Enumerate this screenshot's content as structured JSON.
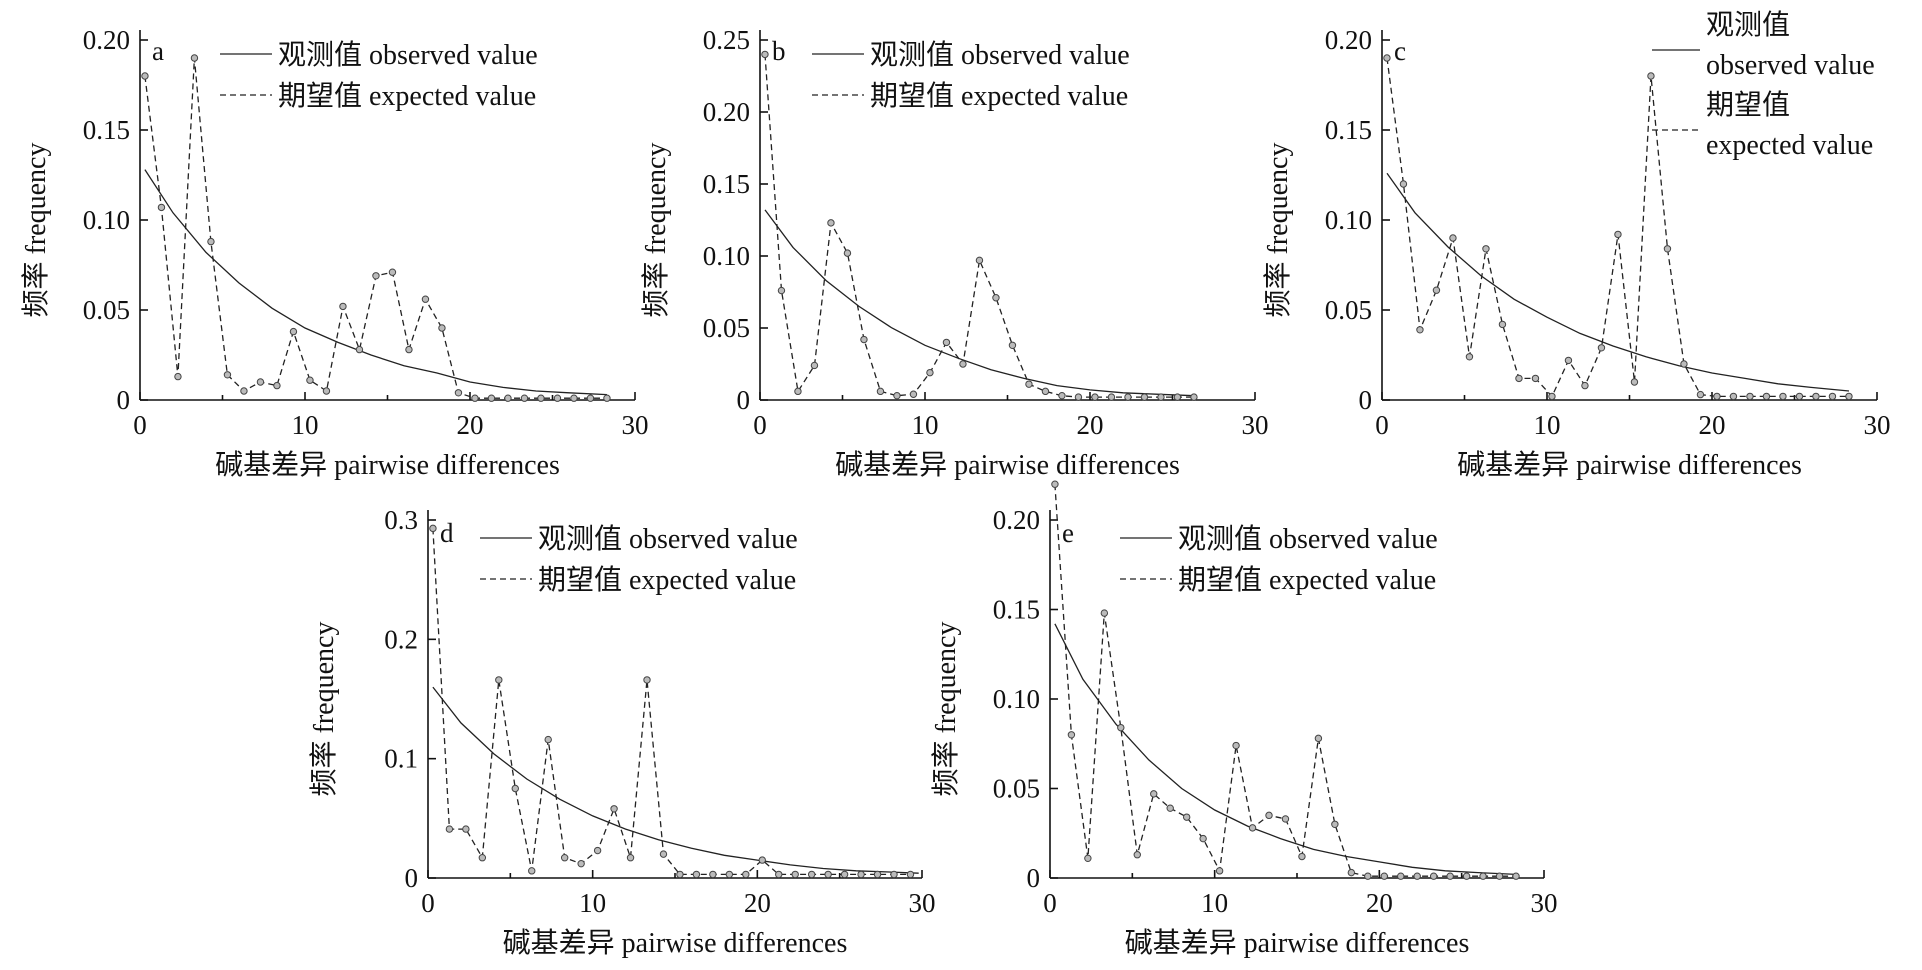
{
  "chart_data": [
    {
      "type": "line",
      "panel_label": "a",
      "xlabel": "碱基差异 pairwise differences",
      "ylabel": "频率 frequency",
      "xlim": [
        0,
        30
      ],
      "ylim": [
        0,
        0.2
      ],
      "xticks": [
        0,
        10,
        20,
        30
      ],
      "xtick_labels": [
        "0",
        "10",
        "20",
        "30"
      ],
      "yticks": [
        0,
        0.05,
        0.1,
        0.15,
        0.2
      ],
      "ytick_labels": [
        "0",
        "0.05",
        "0.10",
        "0.15",
        "0.20"
      ],
      "legend": {
        "placement": "top-right",
        "entries": [
          "观测值 observed value",
          "期望值 expected value"
        ]
      },
      "series": [
        {
          "name": "观测值 observed value",
          "style": "solid",
          "x": [
            0.3,
            2,
            4,
            6,
            8,
            10,
            12,
            14,
            16,
            18,
            20,
            22,
            24,
            26,
            28.3
          ],
          "values": [
            0.128,
            0.104,
            0.082,
            0.065,
            0.051,
            0.04,
            0.032,
            0.025,
            0.019,
            0.015,
            0.01,
            0.007,
            0.005,
            0.004,
            0.003
          ]
        },
        {
          "name": "期望值 expected value",
          "style": "dashed",
          "x": [
            0.3,
            1.3,
            2.3,
            3.3,
            4.3,
            5.3,
            6.3,
            7.3,
            8.3,
            9.3,
            10.3,
            11.3,
            12.3,
            13.3,
            14.3,
            15.3,
            16.3,
            17.3,
            18.3,
            19.3,
            20.3,
            21.3,
            22.3,
            23.3,
            24.3,
            25.3,
            26.3,
            27.3,
            28.3
          ],
          "values": [
            0.18,
            0.107,
            0.013,
            0.19,
            0.088,
            0.014,
            0.005,
            0.01,
            0.008,
            0.038,
            0.011,
            0.005,
            0.052,
            0.028,
            0.069,
            0.071,
            0.028,
            0.056,
            0.04,
            0.004,
            0.001,
            0.001,
            0.001,
            0.001,
            0.001,
            0.001,
            0.001,
            0.001,
            0.001
          ]
        }
      ]
    },
    {
      "type": "line",
      "panel_label": "b",
      "xlabel": "碱基差异 pairwise differences",
      "ylabel": "频率 frequency",
      "xlim": [
        0,
        30
      ],
      "ylim": [
        0,
        0.25
      ],
      "xticks": [
        0,
        10,
        20,
        30
      ],
      "xtick_labels": [
        "0",
        "10",
        "20",
        "30"
      ],
      "yticks": [
        0,
        0.05,
        0.1,
        0.15,
        0.2,
        0.25
      ],
      "ytick_labels": [
        "0",
        "0.05",
        "0.10",
        "0.15",
        "0.20",
        "0.25"
      ],
      "legend": {
        "placement": "top-right",
        "entries": [
          "观测值 observed value",
          "期望值 expected value"
        ]
      },
      "series": [
        {
          "name": "观测值 observed value",
          "style": "solid",
          "x": [
            0.3,
            2,
            4,
            6,
            8,
            10,
            12,
            14,
            16,
            18,
            20,
            22,
            24,
            26.3
          ],
          "values": [
            0.132,
            0.106,
            0.083,
            0.065,
            0.05,
            0.038,
            0.029,
            0.021,
            0.015,
            0.01,
            0.007,
            0.005,
            0.004,
            0.003
          ]
        },
        {
          "name": "期望值 expected value",
          "style": "dashed",
          "x": [
            0.3,
            1.3,
            2.3,
            3.3,
            4.3,
            5.3,
            6.3,
            7.3,
            8.3,
            9.3,
            10.3,
            11.3,
            12.3,
            13.3,
            14.3,
            15.3,
            16.3,
            17.3,
            18.3,
            19.3,
            20.3,
            21.3,
            22.3,
            23.3,
            24.3,
            25.3,
            26.3
          ],
          "values": [
            0.24,
            0.076,
            0.006,
            0.024,
            0.123,
            0.102,
            0.042,
            0.006,
            0.003,
            0.004,
            0.019,
            0.04,
            0.025,
            0.097,
            0.071,
            0.038,
            0.011,
            0.006,
            0.003,
            0.002,
            0.002,
            0.002,
            0.002,
            0.002,
            0.002,
            0.002,
            0.002
          ]
        }
      ]
    },
    {
      "type": "line",
      "panel_label": "c",
      "xlabel": "碱基差异 pairwise differences",
      "ylabel": "频率 frequency",
      "xlim": [
        0,
        30
      ],
      "ylim": [
        0,
        0.2
      ],
      "xticks": [
        0,
        10,
        20,
        30
      ],
      "xtick_labels": [
        "0",
        "10",
        "20",
        "30"
      ],
      "yticks": [
        0,
        0.05,
        0.1,
        0.15,
        0.2
      ],
      "ytick_labels": [
        "0",
        "0.05",
        "0.10",
        "0.15",
        "0.20"
      ],
      "legend": {
        "placement": "top-right",
        "entries": [
          "观测值 observed value",
          "期望值 expected value"
        ]
      },
      "series": [
        {
          "name": "观测值 observed value",
          "style": "solid",
          "x": [
            0.3,
            2,
            4,
            6,
            8,
            10,
            12,
            14,
            16,
            18,
            20,
            22,
            24,
            26,
            28.3
          ],
          "values": [
            0.126,
            0.104,
            0.085,
            0.069,
            0.056,
            0.046,
            0.037,
            0.03,
            0.024,
            0.019,
            0.015,
            0.012,
            0.009,
            0.007,
            0.005
          ]
        },
        {
          "name": "期望值 expected value",
          "style": "dashed",
          "x": [
            0.3,
            1.3,
            2.3,
            3.3,
            4.3,
            5.3,
            6.3,
            7.3,
            8.3,
            9.3,
            10.3,
            11.3,
            12.3,
            13.3,
            14.3,
            15.3,
            16.3,
            17.3,
            18.3,
            19.3,
            20.3,
            21.3,
            22.3,
            23.3,
            24.3,
            25.3,
            26.3,
            27.3,
            28.3
          ],
          "values": [
            0.19,
            0.12,
            0.039,
            0.061,
            0.09,
            0.024,
            0.084,
            0.042,
            0.012,
            0.012,
            0.002,
            0.022,
            0.008,
            0.029,
            0.092,
            0.01,
            0.18,
            0.084,
            0.02,
            0.003,
            0.002,
            0.002,
            0.002,
            0.002,
            0.002,
            0.002,
            0.002,
            0.002,
            0.002
          ]
        }
      ]
    },
    {
      "type": "line",
      "panel_label": "d",
      "xlabel": "碱基差异 pairwise differences",
      "ylabel": "频率 frequency",
      "xlim": [
        0,
        30
      ],
      "ylim": [
        0,
        0.3
      ],
      "xticks": [
        0,
        10,
        20,
        30
      ],
      "xtick_labels": [
        "0",
        "10",
        "20",
        "30"
      ],
      "yticks": [
        0,
        0.1,
        0.2,
        0.3
      ],
      "ytick_labels": [
        "0",
        "0.1",
        "0.2",
        "0.3"
      ],
      "legend": {
        "placement": "top-right",
        "entries": [
          "观测值 observed value",
          "期望值 expected value"
        ]
      },
      "series": [
        {
          "name": "观测值 observed value",
          "style": "solid",
          "x": [
            0.3,
            2,
            4,
            6,
            8,
            10,
            12,
            14,
            16,
            18,
            20,
            22,
            24,
            26,
            28,
            29.8
          ],
          "values": [
            0.16,
            0.13,
            0.104,
            0.083,
            0.066,
            0.052,
            0.041,
            0.032,
            0.025,
            0.019,
            0.015,
            0.011,
            0.008,
            0.006,
            0.005,
            0.004
          ]
        },
        {
          "name": "期望值 expected value",
          "style": "dashed",
          "x": [
            0.3,
            1.3,
            2.3,
            3.3,
            4.3,
            5.3,
            6.3,
            7.3,
            8.3,
            9.3,
            10.3,
            11.3,
            12.3,
            13.3,
            14.3,
            15.3,
            16.3,
            17.3,
            18.3,
            19.3,
            20.3,
            21.3,
            22.3,
            23.3,
            24.3,
            25.3,
            26.3,
            27.3,
            28.3,
            29.3
          ],
          "values": [
            0.293,
            0.041,
            0.041,
            0.017,
            0.166,
            0.075,
            0.006,
            0.116,
            0.017,
            0.012,
            0.023,
            0.058,
            0.017,
            0.166,
            0.02,
            0.003,
            0.003,
            0.003,
            0.003,
            0.003,
            0.015,
            0.003,
            0.003,
            0.003,
            0.003,
            0.003,
            0.003,
            0.003,
            0.003,
            0.003
          ]
        }
      ]
    },
    {
      "type": "line",
      "panel_label": "e",
      "xlabel": "碱基差异 pairwise differences",
      "ylabel": "频率 frequency",
      "xlim": [
        0,
        30
      ],
      "ylim": [
        0,
        0.2
      ],
      "xticks": [
        0,
        10,
        20,
        30
      ],
      "xtick_labels": [
        "0",
        "10",
        "20",
        "30"
      ],
      "yticks": [
        0,
        0.05,
        0.1,
        0.15,
        0.2
      ],
      "ytick_labels": [
        "0",
        "0.05",
        "0.10",
        "0.15",
        "0.20"
      ],
      "legend": {
        "placement": "top-right",
        "entries": [
          "观测值 observed value",
          "期望值 expected value"
        ]
      },
      "series": [
        {
          "name": "观测值 observed value",
          "style": "solid",
          "x": [
            0.3,
            2,
            4,
            6,
            8,
            10,
            12,
            14,
            16,
            18,
            20,
            22,
            24,
            26,
            28.3
          ],
          "values": [
            0.142,
            0.111,
            0.086,
            0.066,
            0.05,
            0.038,
            0.029,
            0.022,
            0.016,
            0.012,
            0.009,
            0.006,
            0.004,
            0.003,
            0.002
          ]
        },
        {
          "name": "期望值 expected value",
          "style": "dashed",
          "x": [
            0.3,
            1.3,
            2.3,
            3.3,
            4.3,
            5.3,
            6.3,
            7.3,
            8.3,
            9.3,
            10.3,
            11.3,
            12.3,
            13.3,
            14.3,
            15.3,
            16.3,
            17.3,
            18.3,
            19.3,
            20.3,
            21.3,
            22.3,
            23.3,
            24.3,
            25.3,
            26.3,
            27.3,
            28.3
          ],
          "values": [
            0.22,
            0.08,
            0.011,
            0.148,
            0.084,
            0.013,
            0.047,
            0.039,
            0.034,
            0.022,
            0.004,
            0.074,
            0.028,
            0.035,
            0.033,
            0.012,
            0.078,
            0.03,
            0.003,
            0.001,
            0.001,
            0.001,
            0.001,
            0.001,
            0.001,
            0.001,
            0.001,
            0.001,
            0.001
          ]
        }
      ]
    }
  ]
}
